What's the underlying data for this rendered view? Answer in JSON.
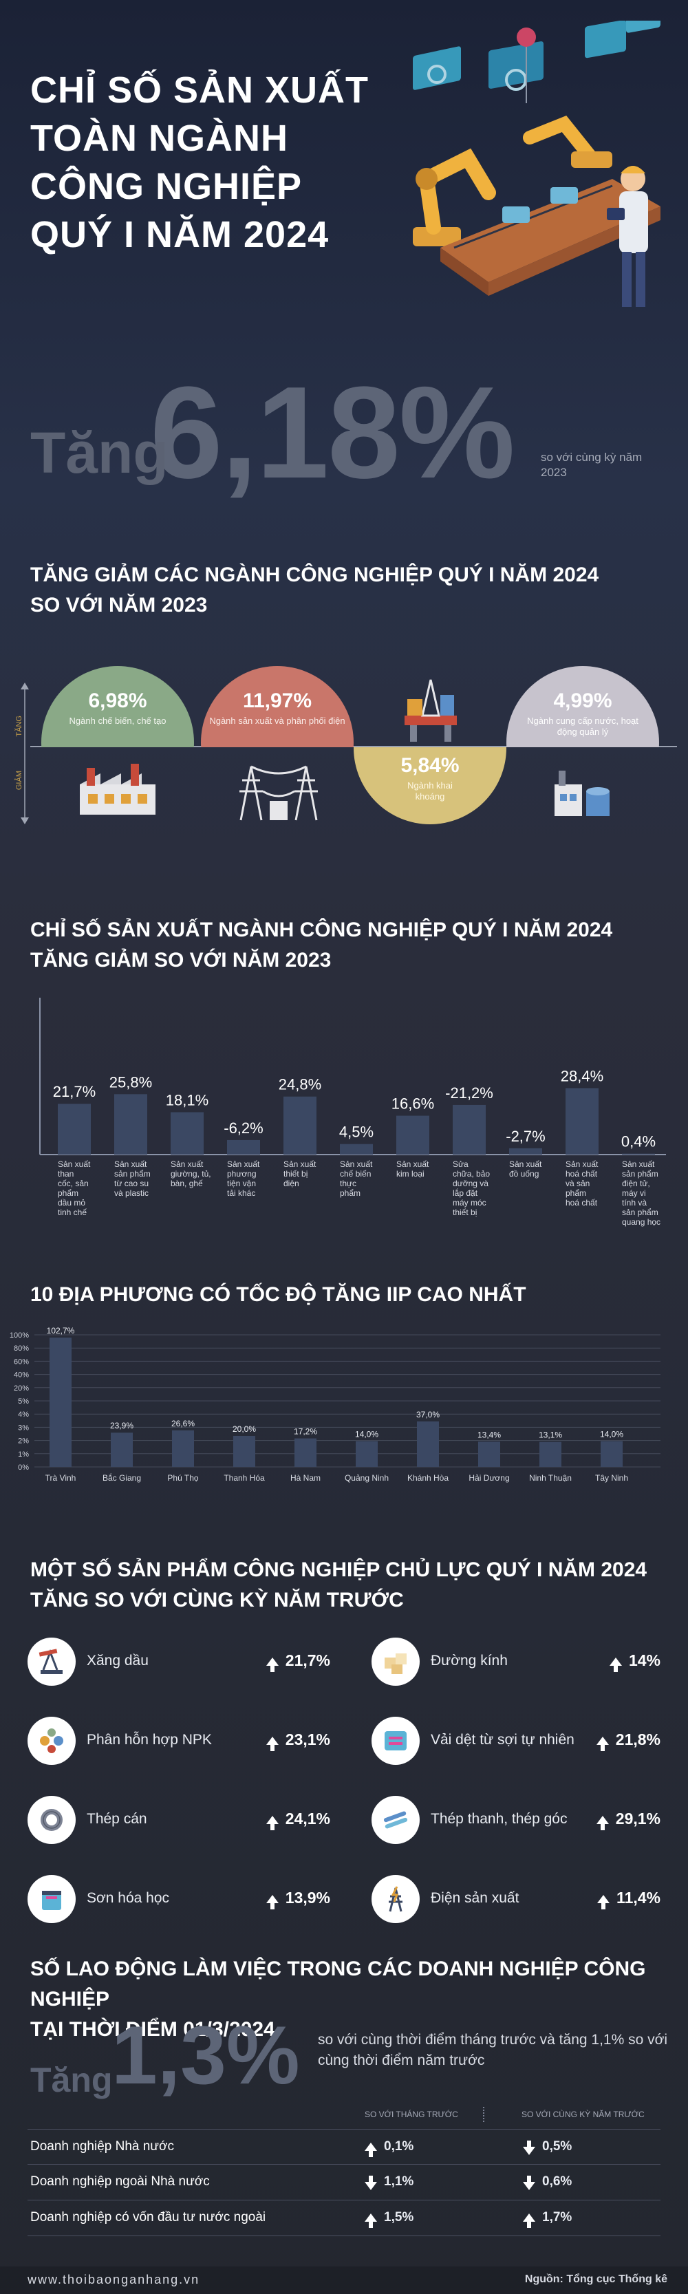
{
  "header": {
    "title_lines": [
      "CHỈ SỐ SẢN XUẤT",
      "TOÀN NGÀNH",
      "CÔNG NGHIỆP",
      "QUÝ I NĂM 2024"
    ],
    "hero_prefix": "Tăng",
    "hero_value": "6,18%",
    "hero_note": "so với cùng kỳ năm 2023"
  },
  "section1": {
    "title_lines": [
      "TĂNG GIẢM CÁC NGÀNH CÔNG NGHIỆP QUÝ I NĂM 2024",
      "SO VỚI NĂM 2023"
    ],
    "axis_up": "TĂNG",
    "axis_down": "GIẢM",
    "items": [
      {
        "value": "6,98%",
        "label": "Ngành chế biến, chế tạo",
        "direction": "up",
        "color": "#8aa987",
        "icon": "factory-icon"
      },
      {
        "value": "11,97%",
        "label": "Ngành sản xuất và phân phối điện",
        "direction": "up",
        "color": "#c9766a",
        "icon": "power-tower-icon"
      },
      {
        "value": "5,84%",
        "label": "Ngành khai khoáng",
        "direction": "down",
        "color": "#d7c27b",
        "icon": "oil-rig-icon"
      },
      {
        "value": "4,99%",
        "label": "Ngành cung cấp nước, hoạt động quản lý",
        "direction": "up",
        "color": "#c7c3cd",
        "icon": "water-plant-icon"
      }
    ]
  },
  "chart_data": [
    {
      "type": "bar",
      "title": "CHỈ SỐ SẢN XUẤT NGÀNH CÔNG NGHIỆP QUÝ I NĂM 2024 TĂNG GIẢM SO VỚI NĂM 2023",
      "title_lines": [
        "CHỈ SỐ SẢN XUẤT NGÀNH CÔNG NGHIỆP QUÝ I NĂM 2024",
        "TĂNG GIẢM SO VỚI NĂM 2023"
      ],
      "categories": [
        "Sản xuất than cốc, sản phẩm dầu mỏ tinh chế",
        "Sản xuất sản phẩm từ cao su và plastic",
        "Sản xuất giường, tủ, bàn, ghế",
        "Sản xuất phương tiện vận tải khác",
        "Sản xuất thiết bị điện",
        "Sản xuất chế biến thực phẩm",
        "Sản xuất kim loại",
        "Sửa chữa, bảo dưỡng và lắp đặt máy móc thiết bị",
        "Sản xuất đồ uống",
        "Sản xuất hoá chất và sản phẩm hoá chất",
        "Sản xuất sản phẩm điện tử, máy vi tính và sản phẩm quang học"
      ],
      "category_lines": [
        [
          "Sản xuất",
          "than",
          "cốc, sản",
          "phẩm",
          "dầu mỏ",
          "tinh chế"
        ],
        [
          "Sản xuất",
          "sản phẩm",
          "từ cao su",
          "và plastic"
        ],
        [
          "Sản xuất",
          "giường, tủ,",
          "bàn, ghế"
        ],
        [
          "Sản xuất",
          "phương",
          "tiện vận",
          "tải khác"
        ],
        [
          "Sản xuất",
          "thiết bị",
          "điện"
        ],
        [
          "Sản xuất",
          "chế biến",
          "thực",
          "phẩm"
        ],
        [
          "Sản xuất",
          "kim loại"
        ],
        [
          "Sửa",
          "chữa, bảo",
          "dưỡng và",
          "lắp đặt",
          "máy móc",
          "thiết bị"
        ],
        [
          "Sản xuất",
          "đồ uống"
        ],
        [
          "Sản xuất",
          "hoá chất",
          "và sản",
          "phẩm",
          "hoá chất"
        ],
        [
          "Sản xuất",
          "sản phẩm",
          "điện tử,",
          "máy vi",
          "tính và",
          "sản phẩm",
          "quang học"
        ]
      ],
      "values": [
        21.7,
        25.8,
        18.1,
        -6.2,
        24.8,
        4.5,
        16.6,
        -21.2,
        -2.7,
        28.4,
        0.4
      ],
      "value_labels": [
        "21,7%",
        "25,8%",
        "18,1%",
        "-6,2%",
        "24,8%",
        "4,5%",
        "16,6%",
        "-21,2%",
        "-2,7%",
        "28,4%",
        "0,4%"
      ],
      "bar_color": "#3b4863",
      "axis_color": "#8a93a8"
    },
    {
      "type": "bar",
      "title": "10 ĐỊA PHƯƠNG CÓ TỐC ĐỘ TĂNG IIP CAO NHẤT",
      "categories": [
        "Trà Vinh",
        "Bắc Giang",
        "Phú Thọ",
        "Thanh Hóa",
        "Hà Nam",
        "Quảng Ninh",
        "Khánh Hòa",
        "Hải Dương",
        "Ninh Thuận",
        "Tây Ninh"
      ],
      "values": [
        102.7,
        23.9,
        26.6,
        20.0,
        17.2,
        14.0,
        37.0,
        13.4,
        13.1,
        14.0
      ],
      "value_labels": [
        "102,7%",
        "23,9%",
        "26,6%",
        "20,0%",
        "17,2%",
        "14,0%",
        "37,0%",
        "13,4%",
        "13,1%",
        "14,0%"
      ],
      "y_ticks": [
        "100%",
        "80%",
        "60%",
        "40%",
        "20%",
        "5%",
        "4%",
        "3%",
        "2%",
        "1%",
        "0%"
      ],
      "bar_color": "#3b4863",
      "grid": true
    }
  ],
  "products": {
    "title_lines": [
      "MỘT SỐ SẢN PHẨM CÔNG NGHIỆP CHỦ LỰC QUÝ I NĂM 2024",
      "TĂNG SO VỚI CÙNG KỲ NĂM TRƯỚC"
    ],
    "items": [
      {
        "name": "Xăng dầu",
        "value": "21,7%",
        "icon": "oil-pump-icon"
      },
      {
        "name": "Đường kính",
        "value": "14%",
        "icon": "sugar-icon"
      },
      {
        "name": "Phân hỗn hợp NPK",
        "value": "23,1%",
        "icon": "fertilizer-icon"
      },
      {
        "name": "Vải dệt từ sợi tự nhiên",
        "value": "21,8%",
        "icon": "fabric-icon"
      },
      {
        "name": "Thép cán",
        "value": "24,1%",
        "icon": "steel-coil-icon"
      },
      {
        "name": "Thép thanh, thép góc",
        "value": "29,1%",
        "icon": "steel-bar-icon"
      },
      {
        "name": "Sơn hóa học",
        "value": "13,9%",
        "icon": "paint-icon"
      },
      {
        "name": "Điện sản xuất",
        "value": "11,4%",
        "icon": "electricity-icon"
      }
    ]
  },
  "labor": {
    "title_lines": [
      "SỐ LAO ĐỘNG LÀM VIỆC TRONG CÁC DOANH NGHIỆP CÔNG NGHIỆP",
      "TẠI THỜI ĐIỂM 01/3/2024"
    ],
    "prefix": "Tăng",
    "value": "1,3%",
    "note": "so với cùng thời điểm tháng trước và tăng 1,1% so với cùng thời điểm năm trước",
    "col1_header": "SO VỚI THÁNG TRƯỚC",
    "col2_header": "SO VỚI CÙNG KỲ NĂM TRƯỚC",
    "rows": [
      {
        "name": "Doanh nghiệp Nhà nước",
        "m": "0,1%",
        "m_dir": "up",
        "y": "0,5%",
        "y_dir": "down"
      },
      {
        "name": "Doanh nghiệp ngoài Nhà nước",
        "m": "1,1%",
        "m_dir": "down",
        "y": "0,6%",
        "y_dir": "down"
      },
      {
        "name": "Doanh nghiệp có vốn đầu tư nước ngoài",
        "m": "1,5%",
        "m_dir": "up",
        "y": "1,7%",
        "y_dir": "up"
      }
    ]
  },
  "footer": {
    "site": "www.thoibaonganhang.vn",
    "source": "Nguồn: Tổng cục Thống kê"
  }
}
